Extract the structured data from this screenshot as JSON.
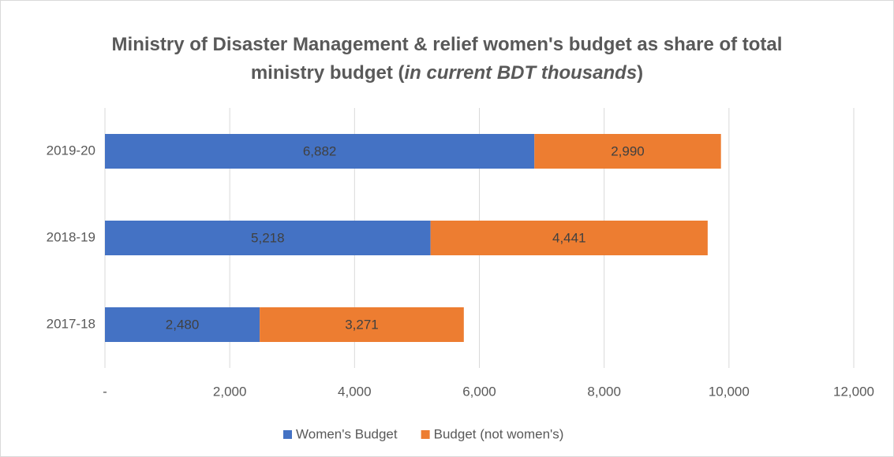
{
  "chart_data": {
    "type": "stacked_barh",
    "title": [
      {
        "text": "Ministry of Disaster Management & relief women's budget as share of total ministry budget (",
        "italic": false
      },
      {
        "text": "in current BDT thousands",
        "italic": true
      },
      {
        "text": ")",
        "italic": false
      }
    ],
    "categories": [
      "2017-18",
      "2018-19",
      "2019-20"
    ],
    "series": [
      {
        "name": "Women's Budget",
        "color": "#4472c4",
        "values": [
          2480,
          5218,
          6882
        ],
        "value_labels": [
          "2,480",
          "5,218",
          "6,882"
        ]
      },
      {
        "name": "Budget (not women's)",
        "color": "#ed7d31",
        "values": [
          3271,
          4441,
          2990
        ],
        "value_labels": [
          "3,271",
          "4,441",
          "2,990"
        ]
      }
    ],
    "xlim": [
      0,
      12000
    ],
    "xticks": [
      {
        "value": 0,
        "label": "-"
      },
      {
        "value": 2000,
        "label": "2,000"
      },
      {
        "value": 4000,
        "label": "4,000"
      },
      {
        "value": 6000,
        "label": "6,000"
      },
      {
        "value": 8000,
        "label": "8,000"
      },
      {
        "value": 10000,
        "label": "10,000"
      },
      {
        "value": 12000,
        "label": "12,000"
      }
    ],
    "grid": true,
    "legend": "bottom"
  }
}
